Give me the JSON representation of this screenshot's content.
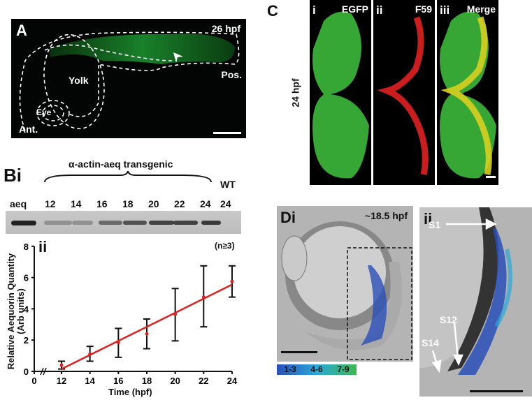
{
  "panel_a": {
    "label": "A",
    "stage": "26 hpf",
    "yolk": "Yolk",
    "eye": "Eye",
    "anterior": "Ant.",
    "posterior": "Pos."
  },
  "panel_b": {
    "label": "Bi",
    "group_label": "α-actin-aeq transgenic",
    "control_lane": "aeq",
    "wt_label": "WT",
    "lanes": [
      "12",
      "14",
      "16",
      "18",
      "20",
      "22",
      "24"
    ],
    "wt_lane": "24",
    "sub_label": "ii",
    "n_note": "(n≥3)"
  },
  "panel_c": {
    "label": "C",
    "stage": "24 hpf",
    "sub": [
      {
        "num": "i",
        "name": "EGFP"
      },
      {
        "num": "ii",
        "name": "F59"
      },
      {
        "num": "iii",
        "name": "Merge"
      }
    ]
  },
  "panel_d": {
    "label": "Di",
    "stage": "~18.5 hpf",
    "sub_label": "ii",
    "somites": [
      "S1",
      "S12",
      "S14"
    ],
    "legend": [
      "1-3",
      "4-6",
      "7-9"
    ],
    "legend_colors": [
      "#2a4fb8",
      "#2aa8d8",
      "#3cb850"
    ]
  },
  "chart_data": {
    "type": "line",
    "title": "",
    "xlabel": "Time (hpf)",
    "ylabel": "Relative Aequorin Quantity (Arb units)",
    "x_ticks": [
      "0",
      "12",
      "14",
      "16",
      "18",
      "20",
      "22",
      "24"
    ],
    "y_ticks": [
      "0",
      "2",
      "4",
      "6",
      "8"
    ],
    "ylim": [
      0,
      8
    ],
    "x_axis_break": true,
    "series": [
      {
        "name": "aequorin",
        "x": [
          12,
          14,
          16,
          18,
          20,
          22,
          24
        ],
        "y": [
          0.4,
          1.1,
          1.85,
          2.4,
          3.65,
          4.75,
          5.75
        ],
        "err_low": [
          0.15,
          0.65,
          0.9,
          1.45,
          1.95,
          2.85,
          4.75
        ],
        "err_high": [
          0.65,
          1.6,
          2.75,
          3.35,
          5.3,
          6.75,
          6.75
        ],
        "color": "#e02020"
      }
    ],
    "fit_line": {
      "x": [
        12,
        24
      ],
      "y": [
        0.15,
        5.55
      ],
      "color": "#e02020"
    }
  }
}
